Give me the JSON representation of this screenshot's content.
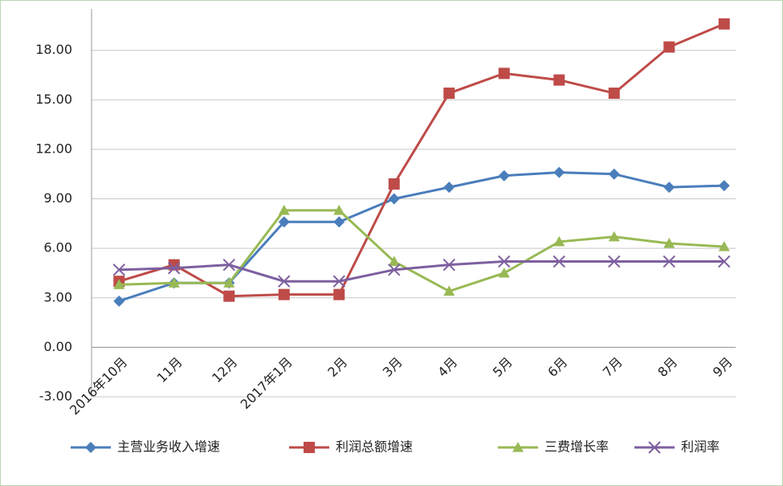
{
  "chart_data": {
    "type": "line",
    "categories": [
      "2016年10月",
      "11月",
      "12月",
      "2017年1月",
      "2月",
      "3月",
      "4月",
      "5月",
      "6月",
      "7月",
      "8月",
      "9月"
    ],
    "series": [
      {
        "name": "主营业务收入增速",
        "color": "#4a7ebb",
        "marker": "diamond",
        "values": [
          2.8,
          3.9,
          3.9,
          7.6,
          7.6,
          9.0,
          9.7,
          10.4,
          10.6,
          10.5,
          9.7,
          9.8
        ]
      },
      {
        "name": "利润总额增速",
        "color": "#be4b48",
        "marker": "square",
        "values": [
          4.0,
          5.0,
          3.1,
          3.2,
          3.2,
          9.9,
          15.4,
          16.6,
          16.2,
          15.4,
          18.2,
          19.6
        ]
      },
      {
        "name": "三费增长率",
        "color": "#98b954",
        "marker": "triangle",
        "values": [
          3.8,
          3.9,
          3.9,
          8.3,
          8.3,
          5.2,
          3.4,
          4.5,
          6.4,
          6.7,
          6.3,
          6.1
        ]
      },
      {
        "name": "利润率",
        "color": "#7d5fa0",
        "marker": "x",
        "values": [
          4.7,
          4.8,
          5.0,
          4.0,
          4.0,
          4.7,
          5.0,
          5.2,
          5.2,
          5.2,
          5.2,
          5.2
        ]
      }
    ],
    "ylim": [
      -3,
      21
    ],
    "yticks": [
      {
        "value": -3,
        "label": "-3.00"
      },
      {
        "value": 0,
        "label": "0.00"
      },
      {
        "value": 3,
        "label": "3.00"
      },
      {
        "value": 6,
        "label": "6.00"
      },
      {
        "value": 9,
        "label": "9.00"
      },
      {
        "value": 12,
        "label": "12.00"
      },
      {
        "value": 15,
        "label": "15.00"
      },
      {
        "value": 18,
        "label": "18.00"
      }
    ],
    "grid": true,
    "legend": "bottom"
  }
}
